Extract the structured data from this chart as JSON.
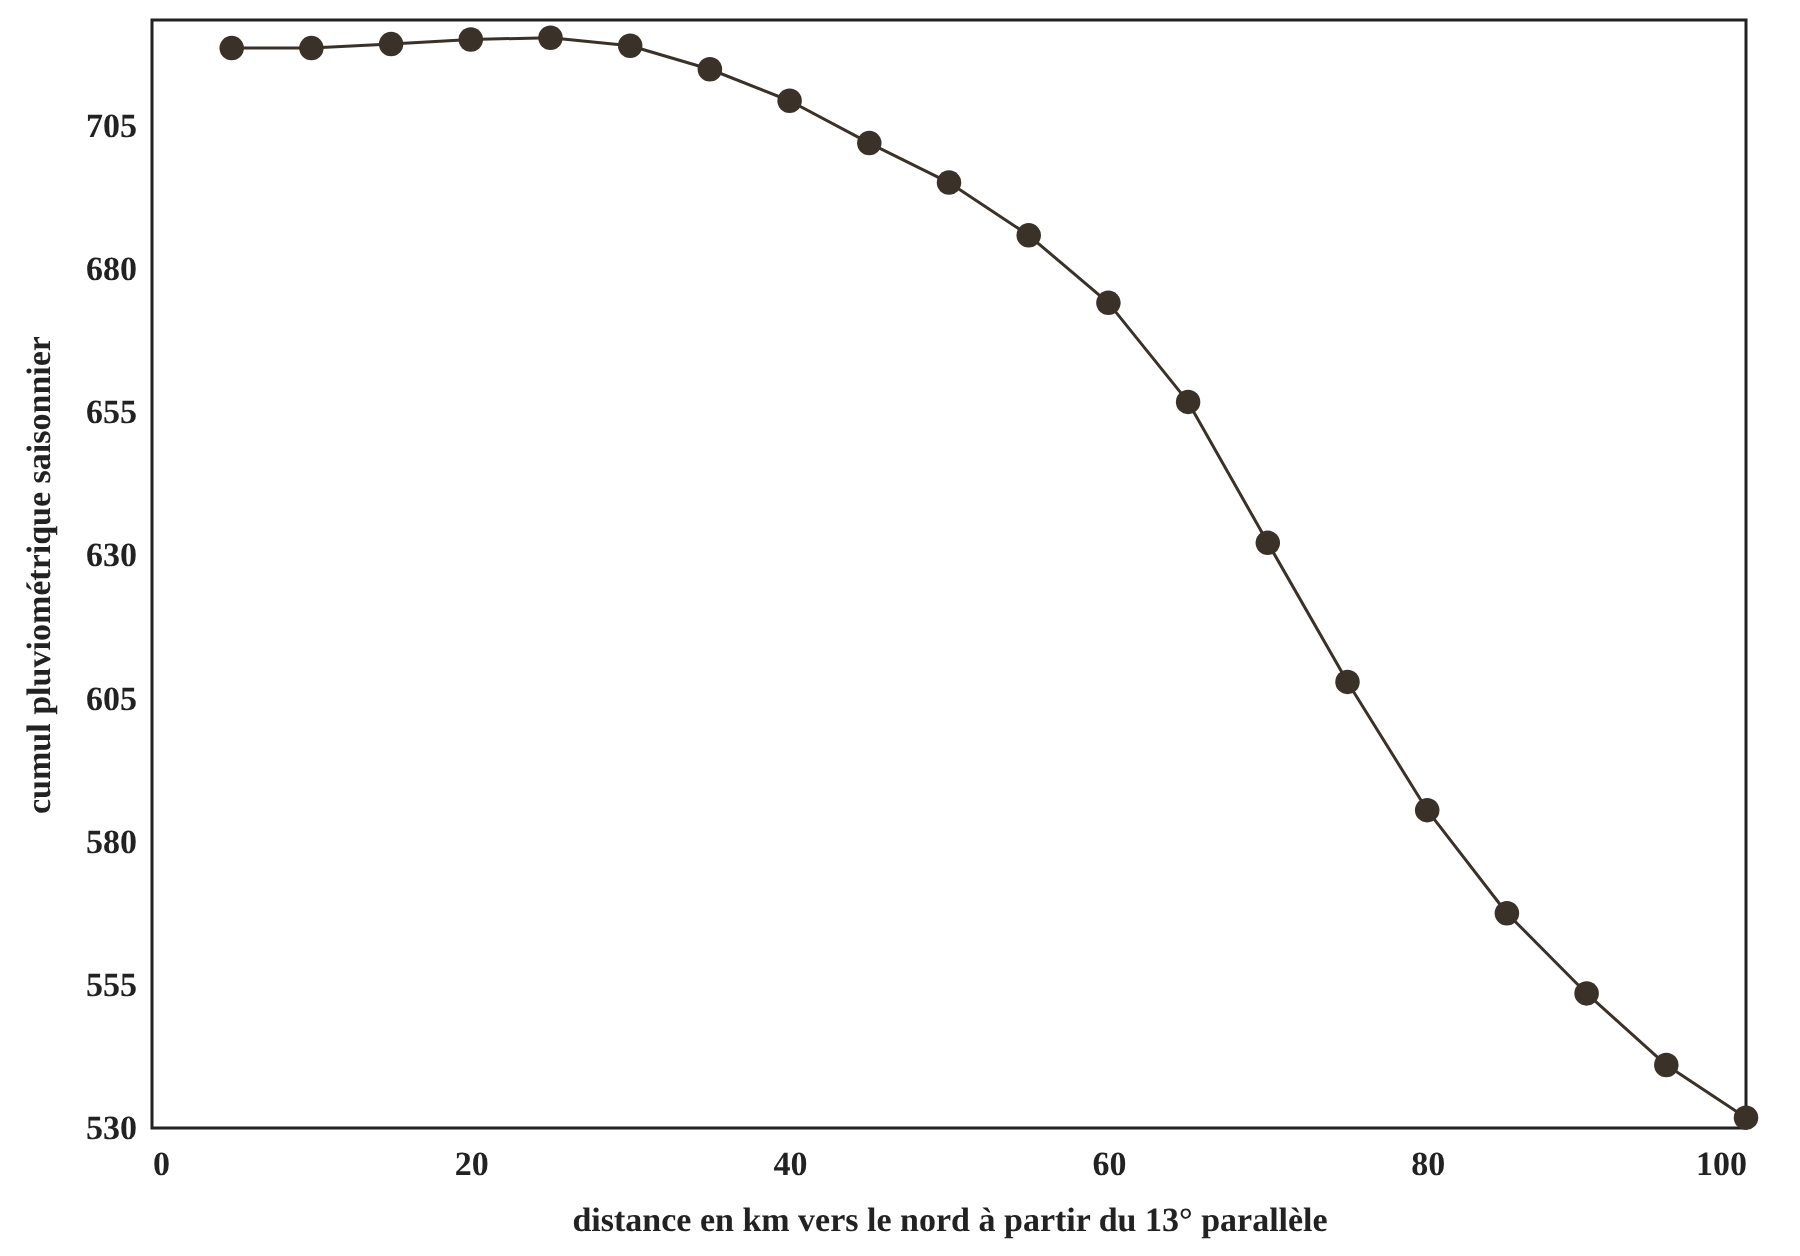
{
  "chart_data": {
    "type": "line",
    "xlabel": "distance en km vers le nord à partir du 13° parallèle",
    "ylabel": "cumul pluviométrique saisonnier",
    "x": [
      5,
      10,
      15,
      20,
      25,
      30,
      35,
      40,
      45,
      50,
      55,
      60,
      65,
      70,
      75,
      80,
      85,
      90,
      95,
      100
    ],
    "series": [
      {
        "color": "#3a3128",
        "values": [
          718.6,
          718.6,
          719.3,
          720.1,
          720.4,
          719,
          714.9,
          709.4,
          702,
          695.1,
          685.9,
          674.1,
          656.8,
          632.2,
          607.9,
          585.5,
          567.5,
          553.5,
          541,
          531.8
        ]
      }
    ],
    "xlim": [
      0,
      100
    ],
    "ylim": [
      530,
      723.5
    ],
    "xticks": [
      0,
      20,
      40,
      60,
      80,
      100
    ],
    "yticks": [
      530,
      555,
      580,
      605,
      630,
      655,
      680,
      705
    ],
    "grid": false,
    "marker": "circle",
    "line_style": "solid"
  }
}
